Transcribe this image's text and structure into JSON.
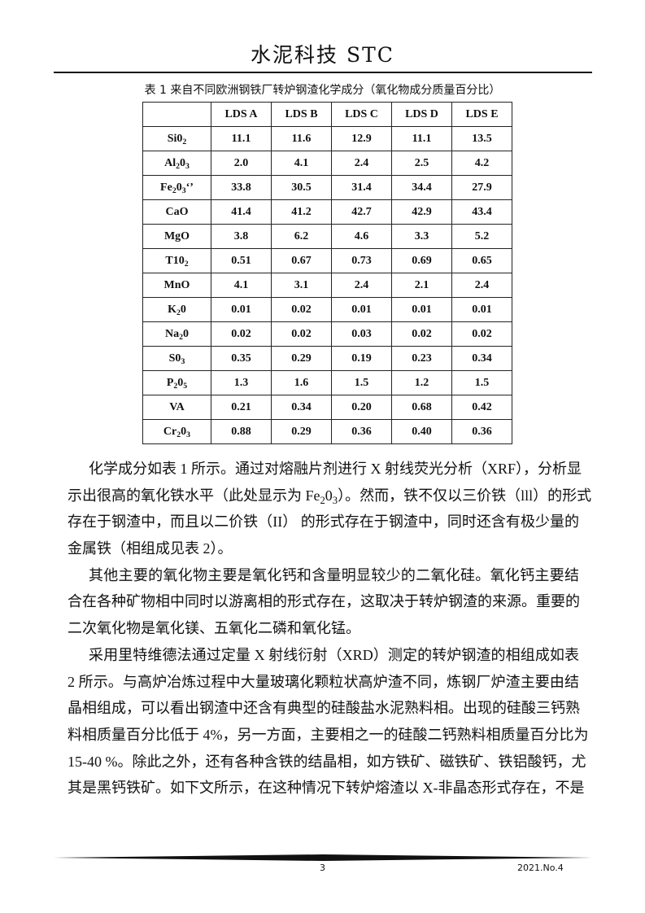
{
  "header": {
    "journal_title": "水泥科技  STC"
  },
  "table": {
    "caption": "表 1   来自不同欧洲钢铁厂转炉钢渣化学成分（氧化物成分质量百分比）",
    "columns": [
      "",
      "LDS A",
      "LDS B",
      "LDS C",
      "LDS D",
      "LDS E"
    ],
    "rows": [
      {
        "label": [
          {
            "t": "Si0"
          },
          {
            "sub": "2"
          }
        ],
        "values": [
          "11.1",
          "11.6",
          "12.9",
          "11.1",
          "13.5"
        ]
      },
      {
        "label": [
          {
            "t": "Al"
          },
          {
            "sub": "2"
          },
          {
            "t": "0"
          },
          {
            "sub": "3"
          }
        ],
        "values": [
          "2.0",
          "4.1",
          "2.4",
          "2.5",
          "4.2"
        ]
      },
      {
        "label": [
          {
            "t": "Fe"
          },
          {
            "sub": "2"
          },
          {
            "t": "0"
          },
          {
            "sub": "3"
          },
          {
            "t": "‘’"
          }
        ],
        "values": [
          "33.8",
          "30.5",
          "31.4",
          "34.4",
          "27.9"
        ]
      },
      {
        "label": [
          {
            "t": "CaO"
          }
        ],
        "values": [
          "41.4",
          "41.2",
          "42.7",
          "42.9",
          "43.4"
        ]
      },
      {
        "label": [
          {
            "t": "MgO"
          }
        ],
        "values": [
          "3.8",
          "6.2",
          "4.6",
          "3.3",
          "5.2"
        ]
      },
      {
        "label": [
          {
            "t": "T10"
          },
          {
            "sub": "2"
          }
        ],
        "values": [
          "0.51",
          "0.67",
          "0.73",
          "0.69",
          "0.65"
        ]
      },
      {
        "label": [
          {
            "t": "MnO"
          }
        ],
        "values": [
          "4.1",
          "3.1",
          "2.4",
          "2.1",
          "2.4"
        ]
      },
      {
        "label": [
          {
            "t": "K"
          },
          {
            "sub": "2"
          },
          {
            "t": "0"
          }
        ],
        "values": [
          "0.01",
          "0.02",
          "0.01",
          "0.01",
          "0.01"
        ]
      },
      {
        "label": [
          {
            "t": "Na"
          },
          {
            "sub": "2"
          },
          {
            "t": "0"
          }
        ],
        "values": [
          "0.02",
          "0.02",
          "0.03",
          "0.02",
          "0.02"
        ]
      },
      {
        "label": [
          {
            "t": "S0"
          },
          {
            "sub": "3"
          }
        ],
        "values": [
          "0.35",
          "0.29",
          "0.19",
          "0.23",
          "0.34"
        ]
      },
      {
        "label": [
          {
            "t": "P"
          },
          {
            "sub": "2"
          },
          {
            "t": "0"
          },
          {
            "sub": "5"
          }
        ],
        "values": [
          "1.3",
          "1.6",
          "1.5",
          "1.2",
          "1.5"
        ]
      },
      {
        "label": [
          {
            "t": "VA"
          }
        ],
        "values": [
          "0.21",
          "0.34",
          "0.20",
          "0.68",
          "0.42"
        ]
      },
      {
        "label": [
          {
            "t": "Cr"
          },
          {
            "sub": "2"
          },
          {
            "t": "0"
          },
          {
            "sub": "3"
          }
        ],
        "values": [
          "0.88",
          "0.29",
          "0.36",
          "0.40",
          "0.36"
        ]
      }
    ]
  },
  "body": {
    "paragraphs": [
      {
        "lines": [
          [
            {
              "t": "化学成分如表 1 所示。通过对熔融片剂进行 X 射线荧光分析（XRF），分析显"
            }
          ],
          [
            {
              "t": "示出很高的氧化铁水平（此处显示为 Fe"
            },
            {
              "sub": "2"
            },
            {
              "t": "0"
            },
            {
              "sub": "3"
            },
            {
              "t": "）。然而，铁不仅以三价铁（lll）的形式"
            }
          ],
          [
            {
              "t": "存在于钢渣中，而且以二价铁（II）  的形式存在于钢渣中，同时还含有极少量的"
            }
          ],
          [
            {
              "t": "金属铁（相组成见表 2）。"
            }
          ]
        ]
      },
      {
        "lines": [
          [
            {
              "t": "其他主要的氧化物主要是氧化钙和含量明显较少的二氧化硅。氧化钙主要结"
            }
          ],
          [
            {
              "t": "合在各种矿物相中同时以游离相的形式存在，这取决于转炉钢渣的来源。重要的"
            }
          ],
          [
            {
              "t": "二次氧化物是氧化镁、五氧化二磷和氧化锰。"
            }
          ]
        ]
      },
      {
        "lines": [
          [
            {
              "t": "采用里特维德法通过定量 X 射线衍射（XRD）测定的转炉钢渣的相组成如表"
            }
          ],
          [
            {
              "t": "2 所示。与高炉冶炼过程中大量玻璃化颗粒状高炉渣不同，炼钢厂炉渣主要由结"
            }
          ],
          [
            {
              "t": "晶相组成，可以看出钢渣中还含有典型的硅酸盐水泥熟料相。出现的硅酸三钙熟"
            }
          ],
          [
            {
              "t": "料相质量百分比低于 4%，另一方面，主要相之一的硅酸二钙熟料相质量百分比为"
            }
          ],
          [
            {
              "t": "15-40 %。除此之外，还有各种含铁的结晶相，如方铁矿、磁铁矿、铁铝酸钙，尤"
            }
          ],
          [
            {
              "t": "其是黑钙铁矿。如下文所示，在这种情况下转炉熔渣以 X-非晶态形式存在，不是"
            }
          ]
        ],
        "continues": true
      }
    ]
  },
  "footer": {
    "page_number": "3",
    "issue": "2021.No.4"
  }
}
